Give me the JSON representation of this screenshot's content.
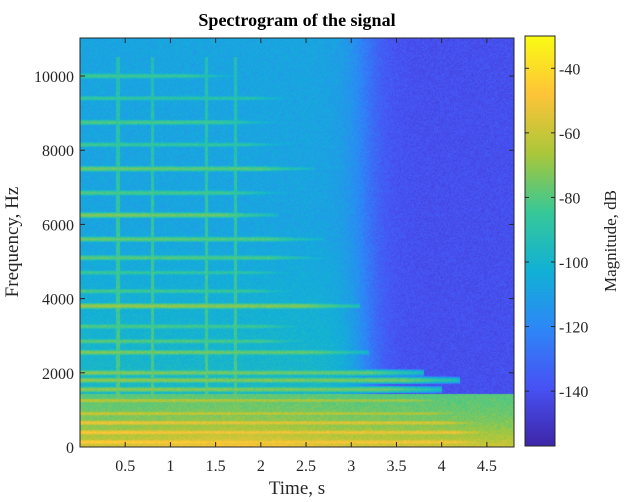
{
  "chart_data": {
    "type": "heatmap",
    "title": "Spectrogram of the signal",
    "xlabel": "Time, s",
    "ylabel": "Frequency, Hz",
    "colorbar_label": "Magnitude, dB",
    "colormap": "parula",
    "xlim": [
      0,
      4.8
    ],
    "ylim": [
      0,
      11025
    ],
    "clim": [
      -157,
      -30
    ],
    "x_ticks": [
      0.5,
      1,
      1.5,
      2,
      2.5,
      3,
      3.5,
      4,
      4.5
    ],
    "x_tick_labels": [
      "0.5",
      "1",
      "1.5",
      "2",
      "2.5",
      "3",
      "3.5",
      "4",
      "4.5"
    ],
    "y_ticks": [
      0,
      2000,
      4000,
      6000,
      8000,
      10000
    ],
    "y_tick_labels": [
      "0",
      "2000",
      "4000",
      "6000",
      "8000",
      "10000"
    ],
    "colorbar_ticks": [
      -40,
      -60,
      -80,
      -100,
      -120,
      -140
    ],
    "colorbar_tick_labels": [
      "-40",
      "-60",
      "-80",
      "-100",
      "-120",
      "-140"
    ],
    "noise_floor_db": {
      "before_decay": -108,
      "after_decay": -140
    },
    "decay_time_s": 3.15,
    "low_frequency_band": {
      "freq_max_hz": 800,
      "time_range_s": [
        0.5,
        3.0
      ],
      "level_db": -48
    },
    "harmonic_lines": [
      {
        "freq_hz": 130,
        "level_db": -45,
        "time_end_s": 4.75
      },
      {
        "freq_hz": 390,
        "level_db": -48,
        "time_end_s": 4.75
      },
      {
        "freq_hz": 650,
        "level_db": -52,
        "time_end_s": 4.6
      },
      {
        "freq_hz": 900,
        "level_db": -60,
        "time_end_s": 4.5
      },
      {
        "freq_hz": 1250,
        "level_db": -63,
        "time_end_s": 4.3
      },
      {
        "freq_hz": 1550,
        "level_db": -70,
        "time_end_s": 4.0
      },
      {
        "freq_hz": 1800,
        "level_db": -70,
        "time_end_s": 4.2
      },
      {
        "freq_hz": 2000,
        "level_db": -72,
        "time_end_s": 3.8
      },
      {
        "freq_hz": 2550,
        "level_db": -73,
        "time_end_s": 3.2
      },
      {
        "freq_hz": 2850,
        "level_db": -78,
        "time_end_s": 2.6
      },
      {
        "freq_hz": 3250,
        "level_db": -80,
        "time_end_s": 2.6
      },
      {
        "freq_hz": 3800,
        "level_db": -68,
        "time_end_s": 3.1
      },
      {
        "freq_hz": 4200,
        "level_db": -82,
        "time_end_s": 2.5
      },
      {
        "freq_hz": 4700,
        "level_db": -85,
        "time_end_s": 2.5
      },
      {
        "freq_hz": 5100,
        "level_db": -78,
        "time_end_s": 2.7
      },
      {
        "freq_hz": 5600,
        "level_db": -76,
        "time_end_s": 2.7
      },
      {
        "freq_hz": 6250,
        "level_db": -72,
        "time_end_s": 2.2
      },
      {
        "freq_hz": 6850,
        "level_db": -80,
        "time_end_s": 2.3
      },
      {
        "freq_hz": 7500,
        "level_db": -75,
        "time_end_s": 2.6
      },
      {
        "freq_hz": 8150,
        "level_db": -84,
        "time_end_s": 2.4
      },
      {
        "freq_hz": 8750,
        "level_db": -80,
        "time_end_s": 2.2
      },
      {
        "freq_hz": 9400,
        "level_db": -86,
        "time_end_s": 2.5
      },
      {
        "freq_hz": 10000,
        "level_db": -82,
        "time_end_s": 1.8
      }
    ],
    "onsets_s": [
      0.42,
      0.8,
      1.4,
      1.72
    ],
    "grid": false
  }
}
